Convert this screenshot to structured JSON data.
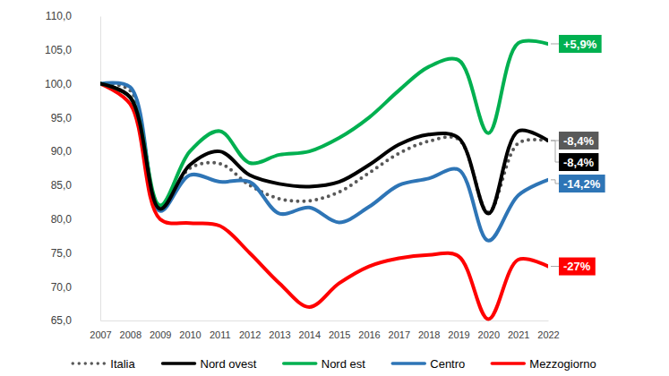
{
  "chart_data": {
    "type": "line",
    "x": [
      2007,
      2008,
      2009,
      2010,
      2011,
      2012,
      2013,
      2014,
      2015,
      2016,
      2017,
      2018,
      2019,
      2020,
      2021,
      2022
    ],
    "xlim": [
      2007,
      2022
    ],
    "xticks": [
      2007,
      2008,
      2009,
      2010,
      2011,
      2012,
      2013,
      2014,
      2015,
      2016,
      2017,
      2018,
      2019,
      2020,
      2021,
      2022
    ],
    "ylim": [
      65,
      110
    ],
    "yticks": [
      {
        "value": 65,
        "label": "65,0"
      },
      {
        "value": 70,
        "label": "70,0"
      },
      {
        "value": 75,
        "label": "75,0"
      },
      {
        "value": 80,
        "label": "80,0"
      },
      {
        "value": 85,
        "label": "85,0"
      },
      {
        "value": 90,
        "label": "90,0"
      },
      {
        "value": 95,
        "label": "95,0"
      },
      {
        "value": 100,
        "label": "100,0"
      },
      {
        "value": 105,
        "label": "105,0"
      },
      {
        "value": 110,
        "label": "110,0"
      }
    ],
    "grid": false,
    "legend": "bottom",
    "series": [
      {
        "name": "Italia",
        "color": "#595959",
        "line_style": "dotted",
        "end_label": "-8,4%",
        "values": [
          100,
          99,
          81.5,
          87.5,
          88.2,
          85,
          83,
          82.7,
          84,
          86.8,
          89.7,
          91.5,
          91.8,
          81,
          91.2,
          91.6
        ]
      },
      {
        "name": "Nord ovest",
        "color": "#000000",
        "line_style": "solid",
        "end_label": "-8,4%",
        "values": [
          100,
          98,
          81.5,
          88,
          90,
          86.5,
          85.2,
          84.8,
          85.5,
          88,
          91,
          92.5,
          92,
          80.8,
          93,
          91.6
        ]
      },
      {
        "name": "Nord est",
        "color": "#00b050",
        "line_style": "solid",
        "end_label": "+5,9%",
        "values": [
          100,
          98,
          82,
          90,
          93,
          88.3,
          89.5,
          90,
          92,
          95,
          99,
          102.5,
          103.5,
          92.7,
          106,
          105.9
        ]
      },
      {
        "name": "Centro",
        "color": "#2e75b6",
        "line_style": "solid",
        "end_label": "-14,2%",
        "values": [
          100,
          99.5,
          81.2,
          86.5,
          85.5,
          85.5,
          80.8,
          81.7,
          79.5,
          81.8,
          85,
          86,
          87.3,
          76.8,
          83.5,
          85.8
        ]
      },
      {
        "name": "Mezzogiorno",
        "color": "#ff0000",
        "line_style": "solid",
        "end_label": "-27%",
        "values": [
          100,
          97,
          80,
          79.4,
          79,
          75,
          70.5,
          67,
          70.5,
          73,
          74.2,
          74.7,
          74.5,
          65.2,
          74,
          73
        ]
      }
    ]
  }
}
